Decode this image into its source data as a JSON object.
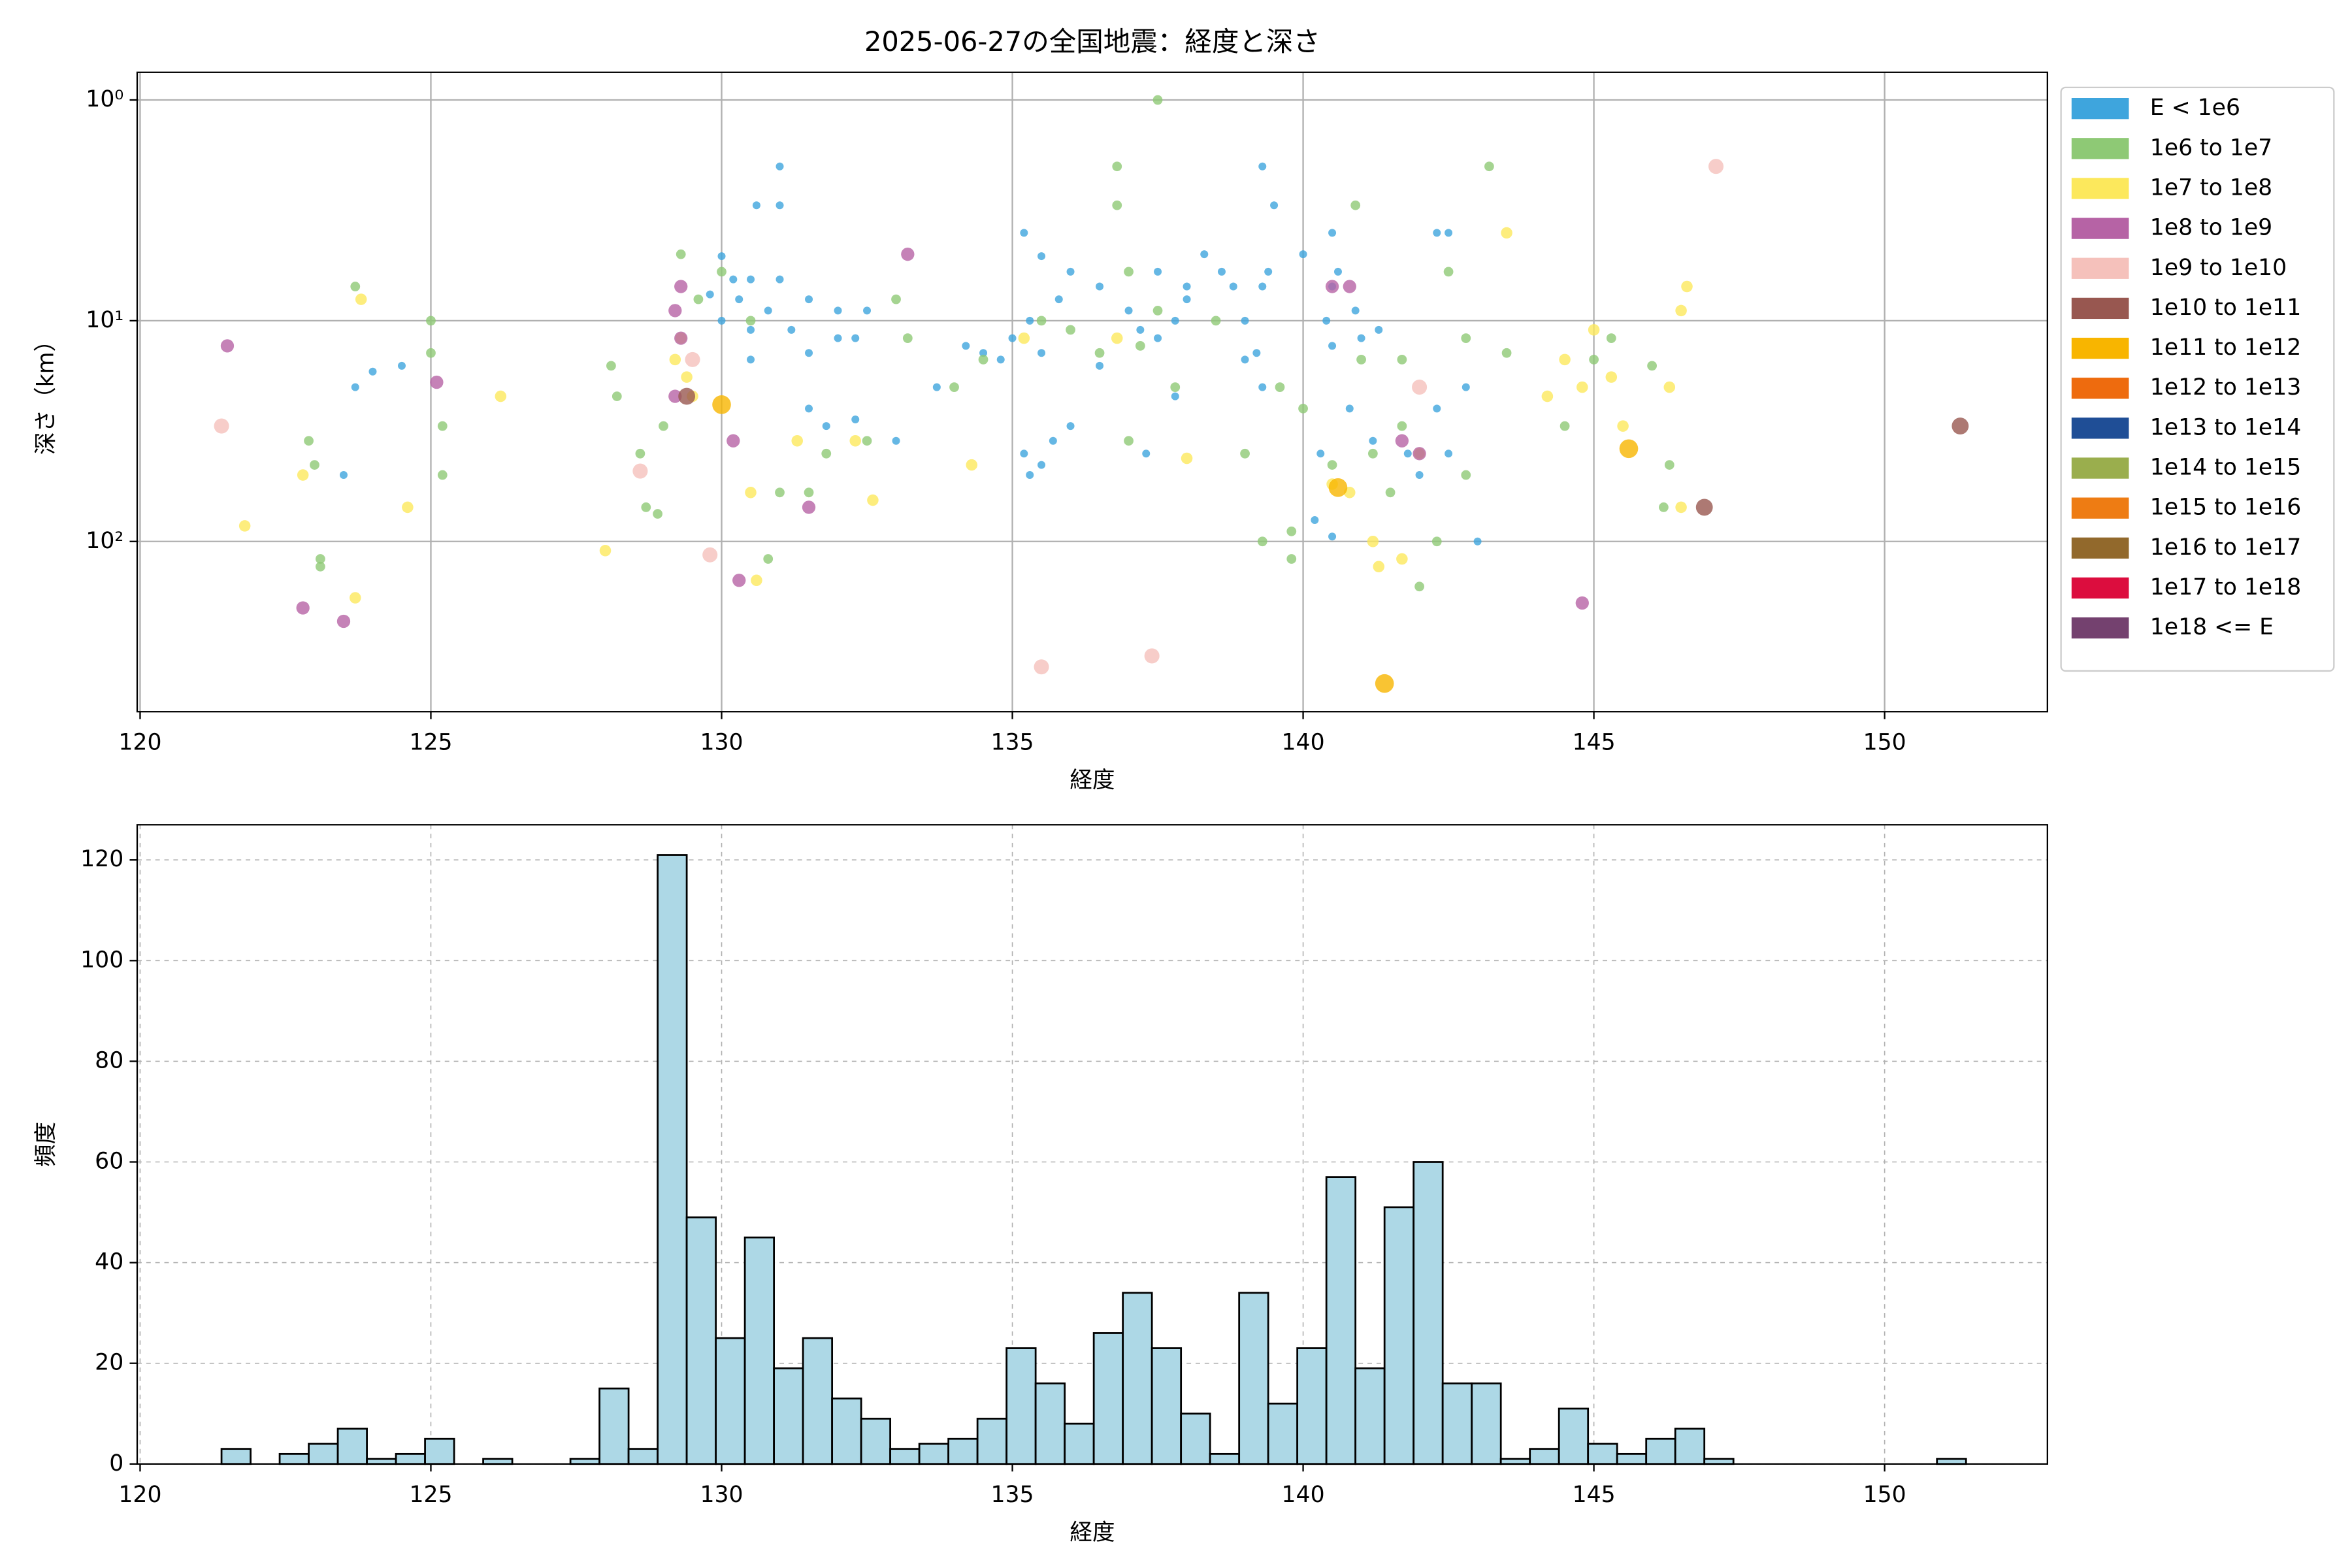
{
  "chart_data": [
    {
      "type": "scatter",
      "title": "2025-06-27の全国地震：経度と深さ",
      "xlabel": "経度",
      "ylabel": "深さ（km）",
      "xlim": [
        119.95,
        152.8
      ],
      "xticks": [
        120,
        125,
        130,
        135,
        140,
        145,
        150
      ],
      "ylim": [
        590,
        0.75
      ],
      "y_log": true,
      "yticks": [
        {
          "value": 1,
          "label": "10⁰"
        },
        {
          "value": 10,
          "label": "10¹"
        },
        {
          "value": 100,
          "label": "10²"
        }
      ],
      "grid": true,
      "legend": "outside",
      "series": [
        {
          "name": "E < 1e6",
          "color": "#3ea5dd",
          "x": [
            131.0,
            130.6,
            131.0,
            130.0,
            130.2,
            130.5,
            131.0,
            129.8,
            130.3,
            130.8,
            131.5,
            132.0,
            132.5,
            130.0,
            130.5,
            131.2,
            132.3,
            130.5,
            131.5,
            132.0,
            131.5,
            131.8,
            132.3,
            123.7,
            124.0,
            124.5,
            123.5,
            133.0,
            133.7,
            134.2,
            134.5,
            135.0,
            135.2,
            135.5,
            135.8,
            135.3,
            135.5,
            134.8,
            136.0,
            136.5,
            136.5,
            135.2,
            135.5,
            135.3,
            135.7,
            136.0,
            137.0,
            137.5,
            137.2,
            137.8,
            137.5,
            137.8,
            137.3,
            138.0,
            138.3,
            138.0,
            138.6,
            138.8,
            139.0,
            139.3,
            139.5,
            139.3,
            139.4,
            139.2,
            139.0,
            139.3,
            140.0,
            140.5,
            140.4,
            140.6,
            140.5,
            140.9,
            141.0,
            141.3,
            140.5,
            140.3,
            140.2,
            140.5,
            140.8,
            141.2,
            141.8,
            142.0,
            142.3,
            142.5,
            142.3,
            142.8,
            143.0,
            142.5
          ],
          "values": [
            2.0,
            3.0,
            3.0,
            5.1,
            6.5,
            6.5,
            6.5,
            7.6,
            8,
            9,
            8,
            9,
            9,
            10,
            11,
            11,
            12,
            15,
            14,
            12,
            25,
            30,
            28,
            20,
            17,
            16,
            50,
            35,
            20,
            13,
            14,
            12,
            4.0,
            5.1,
            8,
            10,
            14,
            15,
            6,
            7,
            16,
            40,
            45,
            50,
            35,
            30,
            9,
            12,
            11,
            10,
            6,
            22,
            40,
            7,
            5,
            8,
            6,
            7,
            10,
            7,
            3,
            2,
            6,
            14,
            15,
            20,
            5,
            7,
            10,
            6,
            4,
            9,
            12,
            11,
            13,
            40,
            80,
            95,
            25,
            35,
            40,
            50,
            4,
            4,
            25,
            20,
            100,
            40
          ]
        },
        {
          "name": "1e6 to 1e7",
          "color": "#8ec975",
          "x": [
            123.7,
            122.9,
            123.0,
            123.1,
            123.1,
            125.0,
            125.0,
            125.2,
            125.2,
            128.1,
            128.2,
            128.6,
            128.7,
            128.9,
            129.0,
            129.3,
            129.6,
            130.0,
            130.5,
            131.0,
            130.8,
            131.5,
            131.8,
            132.5,
            133.0,
            133.2,
            134.0,
            134.5,
            135.5,
            136.0,
            136.5,
            136.8,
            136.8,
            137.0,
            137.2,
            137.5,
            137.0,
            137.5,
            137.8,
            138.5,
            139.0,
            139.3,
            139.6,
            139.8,
            139.8,
            140.0,
            140.5,
            140.9,
            141.0,
            141.2,
            141.5,
            141.7,
            141.7,
            142.0,
            142.5,
            142.8,
            143.2,
            143.5,
            144.5,
            145.0,
            145.3,
            146.0,
            146.2,
            146.3,
            142.0,
            142.3,
            142.8
          ],
          "values": [
            7,
            35,
            45,
            120,
            130,
            10,
            14,
            30,
            50,
            16,
            22,
            40,
            70,
            75,
            30,
            5,
            8,
            6,
            10,
            60,
            120,
            60,
            40,
            35,
            8,
            12,
            20,
            15,
            10,
            11,
            14,
            2,
            3,
            6,
            13,
            9,
            35,
            1.0,
            20,
            10,
            40,
            100,
            20,
            90,
            120,
            25,
            45,
            3,
            15,
            40,
            60,
            30,
            15,
            40,
            6,
            12,
            2,
            14,
            30,
            15,
            12,
            16,
            70,
            45,
            160,
            100,
            50
          ]
        },
        {
          "name": "1e7 to 1e8",
          "color": "#fce85c",
          "x": [
            121.8,
            122.8,
            123.7,
            123.8,
            124.6,
            126.2,
            128.0,
            129.2,
            129.4,
            129.5,
            129.3,
            130.5,
            130.6,
            131.3,
            132.3,
            132.6,
            134.3,
            135.2,
            136.8,
            138.0,
            140.5,
            140.8,
            141.2,
            141.3,
            141.7,
            142.0,
            143.5,
            144.2,
            144.5,
            144.8,
            145.0,
            145.3,
            146.3,
            146.5,
            146.6,
            146.5,
            145.5
          ],
          "values": [
            85,
            50,
            180,
            8,
            70,
            22,
            110,
            15,
            18,
            22,
            12,
            60,
            150,
            35,
            35,
            65,
            45,
            12,
            12,
            42,
            55,
            60,
            100,
            130,
            120,
            40,
            4,
            22,
            15,
            20,
            11,
            18,
            20,
            9,
            7,
            70,
            30
          ]
        },
        {
          "name": "1e8 to 1e9",
          "color": "#b663a5",
          "x": [
            121.5,
            122.8,
            123.5,
            125.1,
            129.3,
            129.2,
            129.3,
            129.2,
            130.2,
            130.3,
            131.5,
            133.2,
            141.7,
            142.0,
            144.8,
            140.5,
            140.8
          ],
          "values": [
            13,
            200,
            230,
            19,
            7,
            9,
            12,
            22,
            35,
            150,
            70,
            5,
            35,
            40,
            190,
            7,
            7
          ]
        },
        {
          "name": "1e9 to 1e10",
          "color": "#f5c1bb",
          "x": [
            121.4,
            128.6,
            129.5,
            129.8,
            137.4,
            135.5,
            142.0,
            147.1
          ],
          "values": [
            30,
            48,
            15,
            115,
            330,
            370,
            20,
            2.0
          ]
        },
        {
          "name": "1e10 to 1e11",
          "color": "#985750",
          "x": [
            129.4,
            146.9,
            151.3
          ],
          "values": [
            22,
            70,
            30
          ]
        },
        {
          "name": "1e11 to 1e12",
          "color": "#f8b500",
          "x": [
            141.4,
            145.6,
            140.6,
            130.0
          ],
          "values": [
            440,
            38,
            57,
            24
          ]
        },
        {
          "name": "1e12 to 1e13",
          "color": "#ee6b0e",
          "x": [],
          "values": []
        },
        {
          "name": "1e13 to 1e14",
          "color": "#1f4e96",
          "x": [],
          "values": []
        },
        {
          "name": "1e14 to 1e15",
          "color": "#9aae4d",
          "x": [],
          "values": []
        },
        {
          "name": "1e15 to 1e16",
          "color": "#ee7c13",
          "x": [],
          "values": []
        },
        {
          "name": "1e16 to 1e17",
          "color": "#92692c",
          "x": [],
          "values": []
        },
        {
          "name": "1e17 to 1e18",
          "color": "#dc0d3e",
          "x": [],
          "values": []
        },
        {
          "name": "1e18 <= E",
          "color": "#74416f",
          "x": [],
          "values": []
        }
      ]
    },
    {
      "type": "histogram",
      "xlabel": "経度",
      "ylabel": "頻度",
      "color": "#add8e6",
      "edgecolor": "#000000",
      "xlim": [
        119.95,
        152.8
      ],
      "xticks": [
        120,
        125,
        130,
        135,
        140,
        145,
        150
      ],
      "ylim": [
        0,
        127
      ],
      "yticks": [
        0,
        20,
        40,
        60,
        80,
        100,
        120
      ],
      "grid": true,
      "grid_style": "dashed",
      "bins": [
        121.4,
        121.9,
        122.4,
        122.9,
        123.4,
        123.9,
        124.4,
        124.9,
        125.4,
        125.9,
        126.4,
        126.9,
        127.4,
        127.9,
        128.4,
        128.9,
        129.4,
        129.9,
        130.4,
        130.9,
        131.4,
        131.9,
        132.4,
        132.9,
        133.4,
        133.9,
        134.4,
        134.9,
        135.4,
        135.9,
        136.4,
        136.9,
        137.4,
        137.9,
        138.4,
        138.9,
        139.4,
        139.9,
        140.4,
        140.9,
        141.4,
        141.9,
        142.4,
        142.9,
        143.4,
        143.9,
        144.4,
        144.9,
        145.4,
        145.9,
        146.4,
        146.9,
        147.4,
        147.9,
        148.4,
        148.9,
        149.4,
        149.9,
        150.4,
        150.9,
        151.4
      ],
      "values": [
        3,
        0,
        2,
        4,
        7,
        1,
        2,
        5,
        0,
        1,
        0,
        0,
        1,
        15,
        3,
        121,
        49,
        25,
        45,
        19,
        25,
        13,
        9,
        3,
        4,
        5,
        9,
        23,
        16,
        8,
        26,
        34,
        23,
        10,
        2,
        34,
        12,
        23,
        57,
        19,
        51,
        60,
        16,
        16,
        1,
        3,
        11,
        4,
        2,
        5,
        7,
        1,
        0,
        0,
        0,
        0,
        0,
        0,
        0,
        1
      ]
    }
  ]
}
